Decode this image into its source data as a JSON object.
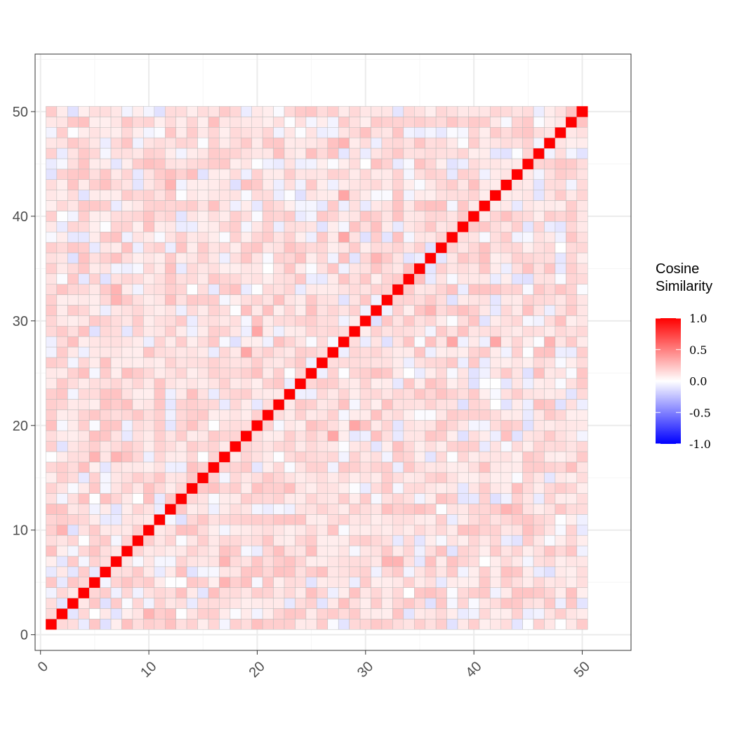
{
  "chart_data": {
    "type": "heatmap",
    "title": "",
    "xlabel": "",
    "ylabel": "",
    "n": 50,
    "x_ticks": [
      0,
      10,
      20,
      30,
      40,
      50
    ],
    "y_ticks": [
      0,
      10,
      20,
      30,
      40,
      50
    ],
    "xlim": [
      -0.5,
      54.5
    ],
    "ylim": [
      -1.5,
      55.5
    ],
    "grid": true,
    "diagonal_value": 1.0,
    "offdiag_value_range": [
      -0.2,
      0.45
    ],
    "legend": {
      "title_lines": [
        "Cosine",
        "Similarity"
      ],
      "ticks": [
        "1.0",
        "0.5",
        "0.0",
        "-0.5",
        "-1.0"
      ],
      "values": [
        1.0,
        0.5,
        0.0,
        -0.5,
        -1.0
      ],
      "position": "right"
    },
    "colors": {
      "low": "#0000ff",
      "mid": "#ffffff",
      "high": "#ff0000",
      "tile_border": "#bdbdbd",
      "panel_border": "#333333",
      "grid_major": "#ebebeb",
      "grid_minor": "#f5f5f5"
    },
    "highlights": [
      {
        "x": 2,
        "y": 10,
        "value": 0.3
      },
      {
        "x": 10,
        "y": 2,
        "value": 0.3
      },
      {
        "x": 5,
        "y": 17,
        "value": 0.3
      },
      {
        "x": 7,
        "y": 17,
        "value": 0.3
      },
      {
        "x": 17,
        "y": 5,
        "value": 0.3
      },
      {
        "x": 19,
        "y": 27,
        "value": 0.35
      },
      {
        "x": 27,
        "y": 19,
        "value": 0.35
      },
      {
        "x": 28,
        "y": 38,
        "value": 0.35
      },
      {
        "x": 38,
        "y": 28,
        "value": 0.35
      },
      {
        "x": 31,
        "y": 36,
        "value": 0.3
      },
      {
        "x": 36,
        "y": 31,
        "value": 0.3
      },
      {
        "x": 42,
        "y": 28,
        "value": 0.35
      },
      {
        "x": 28,
        "y": 42,
        "value": 0.35
      },
      {
        "x": 43,
        "y": 12,
        "value": 0.3
      },
      {
        "x": 12,
        "y": 43,
        "value": 0.3
      },
      {
        "x": 32,
        "y": 7,
        "value": 0.3
      },
      {
        "x": 7,
        "y": 32,
        "value": 0.3
      },
      {
        "x": 7,
        "y": 33,
        "value": 0.3
      },
      {
        "x": 29,
        "y": 20,
        "value": 0.35
      },
      {
        "x": 20,
        "y": 29,
        "value": 0.35
      },
      {
        "x": 44,
        "y": 14,
        "value": 0.25
      },
      {
        "x": 28,
        "y": 47,
        "value": 0.3
      },
      {
        "x": 12,
        "y": 44,
        "value": 0.25
      },
      {
        "x": 4,
        "y": 16,
        "value": 0.25
      },
      {
        "x": 16,
        "y": 4,
        "value": 0.25
      }
    ]
  }
}
